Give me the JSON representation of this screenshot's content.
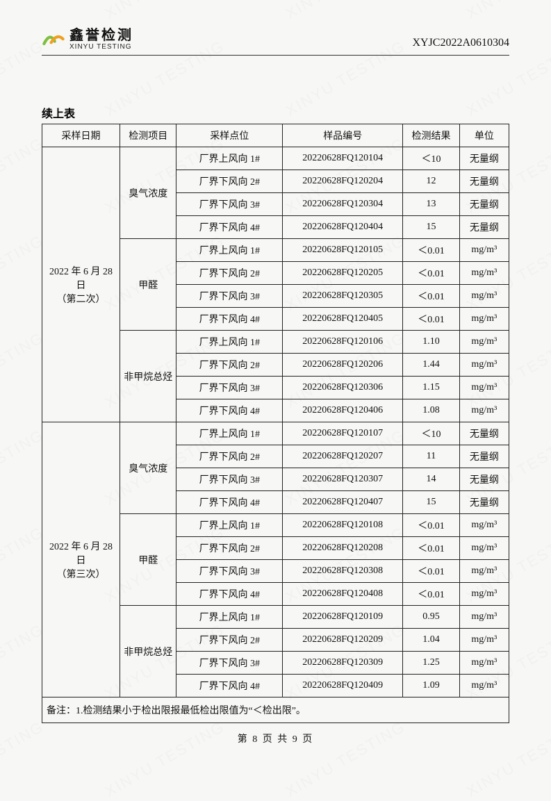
{
  "brand": {
    "cn": "鑫誉检测",
    "en": "XINYU TESTING",
    "logo_colors": {
      "left": "#7fbf3f",
      "right": "#f0a020"
    }
  },
  "report_no": "XYJC2022A0610304",
  "watermark_text": "XINYU TESTING",
  "table_title": "续上表",
  "columns": [
    "采样日期",
    "检测项目",
    "采样点位",
    "样品编号",
    "检测结果",
    "单位"
  ],
  "sections": [
    {
      "date_label": "2022 年 6 月 28 日\n（第二次）",
      "groups": [
        {
          "item": "臭气浓度",
          "unit": "无量纲",
          "rows": [
            {
              "point": "厂界上风向 1#",
              "sample": "20220628FQ120104",
              "result": "＜10"
            },
            {
              "point": "厂界下风向 2#",
              "sample": "20220628FQ120204",
              "result": "12"
            },
            {
              "point": "厂界下风向 3#",
              "sample": "20220628FQ120304",
              "result": "13"
            },
            {
              "point": "厂界下风向 4#",
              "sample": "20220628FQ120404",
              "result": "15"
            }
          ]
        },
        {
          "item": "甲醛",
          "unit": "mg/m³",
          "rows": [
            {
              "point": "厂界上风向 1#",
              "sample": "20220628FQ120105",
              "result": "＜0.01"
            },
            {
              "point": "厂界下风向 2#",
              "sample": "20220628FQ120205",
              "result": "＜0.01"
            },
            {
              "point": "厂界下风向 3#",
              "sample": "20220628FQ120305",
              "result": "＜0.01"
            },
            {
              "point": "厂界下风向 4#",
              "sample": "20220628FQ120405",
              "result": "＜0.01"
            }
          ]
        },
        {
          "item": "非甲烷总烃",
          "unit": "mg/m³",
          "rows": [
            {
              "point": "厂界上风向 1#",
              "sample": "20220628FQ120106",
              "result": "1.10"
            },
            {
              "point": "厂界下风向 2#",
              "sample": "20220628FQ120206",
              "result": "1.44"
            },
            {
              "point": "厂界下风向 3#",
              "sample": "20220628FQ120306",
              "result": "1.15"
            },
            {
              "point": "厂界下风向 4#",
              "sample": "20220628FQ120406",
              "result": "1.08"
            }
          ]
        }
      ]
    },
    {
      "date_label": "2022 年 6 月 28 日\n（第三次）",
      "groups": [
        {
          "item": "臭气浓度",
          "unit": "无量纲",
          "rows": [
            {
              "point": "厂界上风向 1#",
              "sample": "20220628FQ120107",
              "result": "＜10"
            },
            {
              "point": "厂界下风向 2#",
              "sample": "20220628FQ120207",
              "result": "11"
            },
            {
              "point": "厂界下风向 3#",
              "sample": "20220628FQ120307",
              "result": "14"
            },
            {
              "point": "厂界下风向 4#",
              "sample": "20220628FQ120407",
              "result": "15"
            }
          ]
        },
        {
          "item": "甲醛",
          "unit": "mg/m³",
          "rows": [
            {
              "point": "厂界上风向 1#",
              "sample": "20220628FQ120108",
              "result": "＜0.01"
            },
            {
              "point": "厂界下风向 2#",
              "sample": "20220628FQ120208",
              "result": "＜0.01"
            },
            {
              "point": "厂界下风向 3#",
              "sample": "20220628FQ120308",
              "result": "＜0.01"
            },
            {
              "point": "厂界下风向 4#",
              "sample": "20220628FQ120408",
              "result": "＜0.01"
            }
          ]
        },
        {
          "item": "非甲烷总烃",
          "unit": "mg/m³",
          "rows": [
            {
              "point": "厂界上风向 1#",
              "sample": "20220628FQ120109",
              "result": "0.95"
            },
            {
              "point": "厂界下风向 2#",
              "sample": "20220628FQ120209",
              "result": "1.04"
            },
            {
              "point": "厂界下风向 3#",
              "sample": "20220628FQ120309",
              "result": "1.25"
            },
            {
              "point": "厂界下风向 4#",
              "sample": "20220628FQ120409",
              "result": "1.09"
            }
          ]
        }
      ]
    }
  ],
  "note": "备注：1.检测结果小于检出限报最低检出限值为“＜检出限”。",
  "footer": "第 8 页 共 9 页"
}
